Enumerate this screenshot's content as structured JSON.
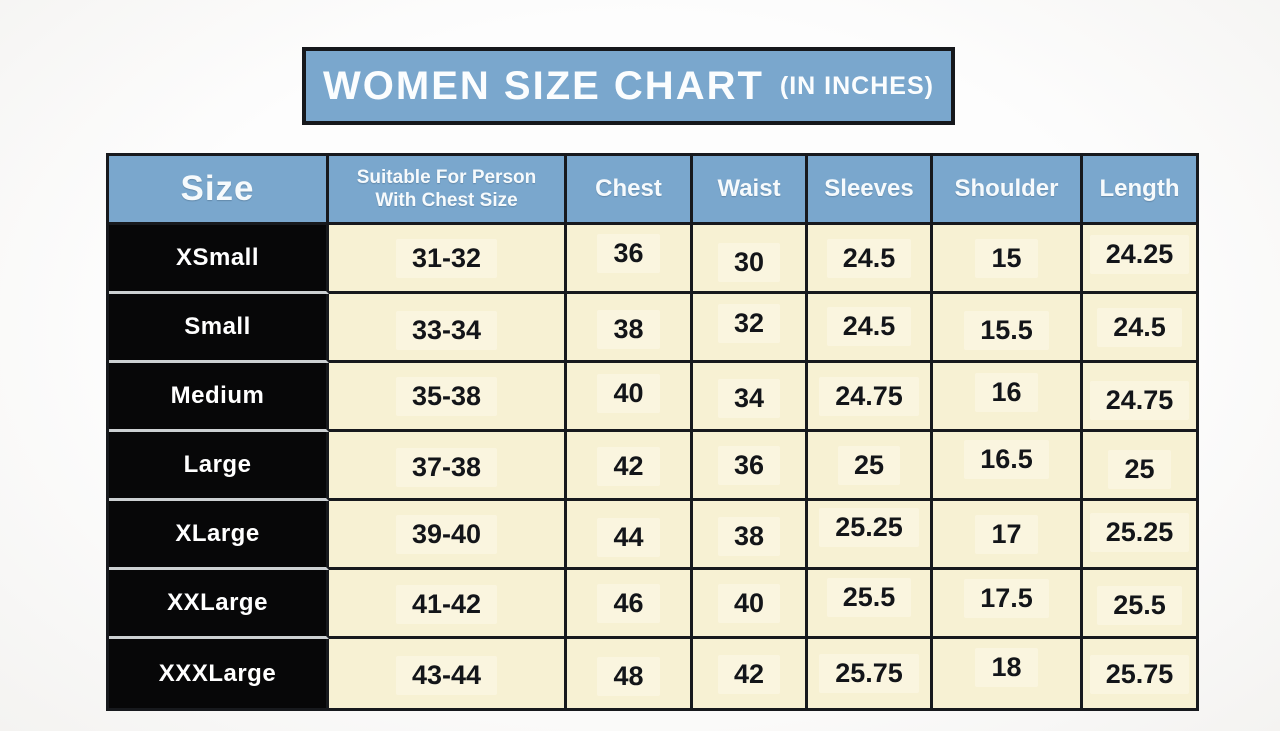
{
  "title": {
    "main": "WOMEN SIZE CHART",
    "suffix": "(IN INCHES)"
  },
  "colors": {
    "banner_blue": "#7aa7cd",
    "header_blue": "#7aa7cd",
    "cell_cream": "#f7f1d3",
    "size_column_black": "#070708",
    "border_dark": "#17191d",
    "separator_grey": "#ccd0d2",
    "text_white": "#fbfdfe"
  },
  "table": {
    "header": {
      "size": "Size",
      "suitable_line1": "Suitable For Person",
      "suitable_line2": "With Chest Size",
      "chest": "Chest",
      "waist": "Waist",
      "sleeves": "Sleeves",
      "shoulder": "Shoulder",
      "length": "Length"
    },
    "rows": [
      {
        "size": "XSmall",
        "suitable": "31-32",
        "chest": "36",
        "waist": "30",
        "sleeves": "24.5",
        "shoulder": "15",
        "length": "24.25"
      },
      {
        "size": "Small",
        "suitable": "33-34",
        "chest": "38",
        "waist": "32",
        "sleeves": "24.5",
        "shoulder": "15.5",
        "length": "24.5"
      },
      {
        "size": "Medium",
        "suitable": "35-38",
        "chest": "40",
        "waist": "34",
        "sleeves": "24.75",
        "shoulder": "16",
        "length": "24.75"
      },
      {
        "size": "Large",
        "suitable": "37-38",
        "chest": "42",
        "waist": "36",
        "sleeves": "25",
        "shoulder": "16.5",
        "length": "25"
      },
      {
        "size": "XLarge",
        "suitable": "39-40",
        "chest": "44",
        "waist": "38",
        "sleeves": "25.25",
        "shoulder": "17",
        "length": "25.25"
      },
      {
        "size": "XXLarge",
        "suitable": "41-42",
        "chest": "46",
        "waist": "40",
        "sleeves": "25.5",
        "shoulder": "17.5",
        "length": "25.5"
      },
      {
        "size": "XXXLarge",
        "suitable": "43-44",
        "chest": "48",
        "waist": "42",
        "sleeves": "25.75",
        "shoulder": "18",
        "length": "25.75"
      }
    ]
  },
  "chart_data": {
    "type": "table",
    "title": "WOMEN SIZE CHART (IN INCHES)",
    "units": "inches",
    "columns": [
      "Size",
      "Suitable For Person With Chest Size",
      "Chest",
      "Waist",
      "Sleeves",
      "Shoulder",
      "Length"
    ],
    "rows": [
      [
        "XSmall",
        "31-32",
        36,
        30,
        24.5,
        15,
        24.25
      ],
      [
        "Small",
        "33-34",
        38,
        32,
        24.5,
        15.5,
        24.5
      ],
      [
        "Medium",
        "35-38",
        40,
        34,
        24.75,
        16,
        24.75
      ],
      [
        "Large",
        "37-38",
        42,
        36,
        25,
        16.5,
        25
      ],
      [
        "XLarge",
        "39-40",
        44,
        38,
        25.25,
        17,
        25.25
      ],
      [
        "XXLarge",
        "41-42",
        46,
        40,
        25.5,
        17.5,
        25.5
      ],
      [
        "XXXLarge",
        "43-44",
        48,
        42,
        25.75,
        18,
        25.75
      ]
    ]
  }
}
